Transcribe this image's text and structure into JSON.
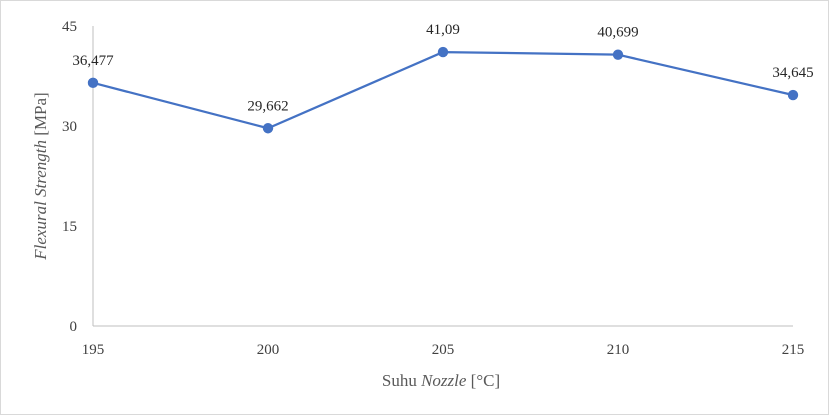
{
  "chart_data": {
    "type": "line",
    "x": [
      195,
      200,
      205,
      210,
      215
    ],
    "x_tick_labels": [
      "195",
      "200",
      "205",
      "210",
      "215"
    ],
    "series": [
      {
        "values": [
          36.477,
          29.662,
          41.09,
          40.699,
          34.645
        ],
        "data_labels": [
          "36,477",
          "29,662",
          "41,09",
          "40,699",
          "34,645"
        ],
        "color": "#4472c4"
      }
    ],
    "y_ticks": [
      0,
      15,
      30,
      45
    ],
    "y_tick_labels": [
      "0",
      "15",
      "30",
      "45"
    ],
    "ylim": [
      0,
      45
    ],
    "xlabel_parts": [
      "Suhu ",
      "Nozzle",
      " [°C]"
    ],
    "ylabel_parts": [
      "Flexural Strength",
      " [MPa]"
    ],
    "grid": false,
    "legend": "none"
  }
}
